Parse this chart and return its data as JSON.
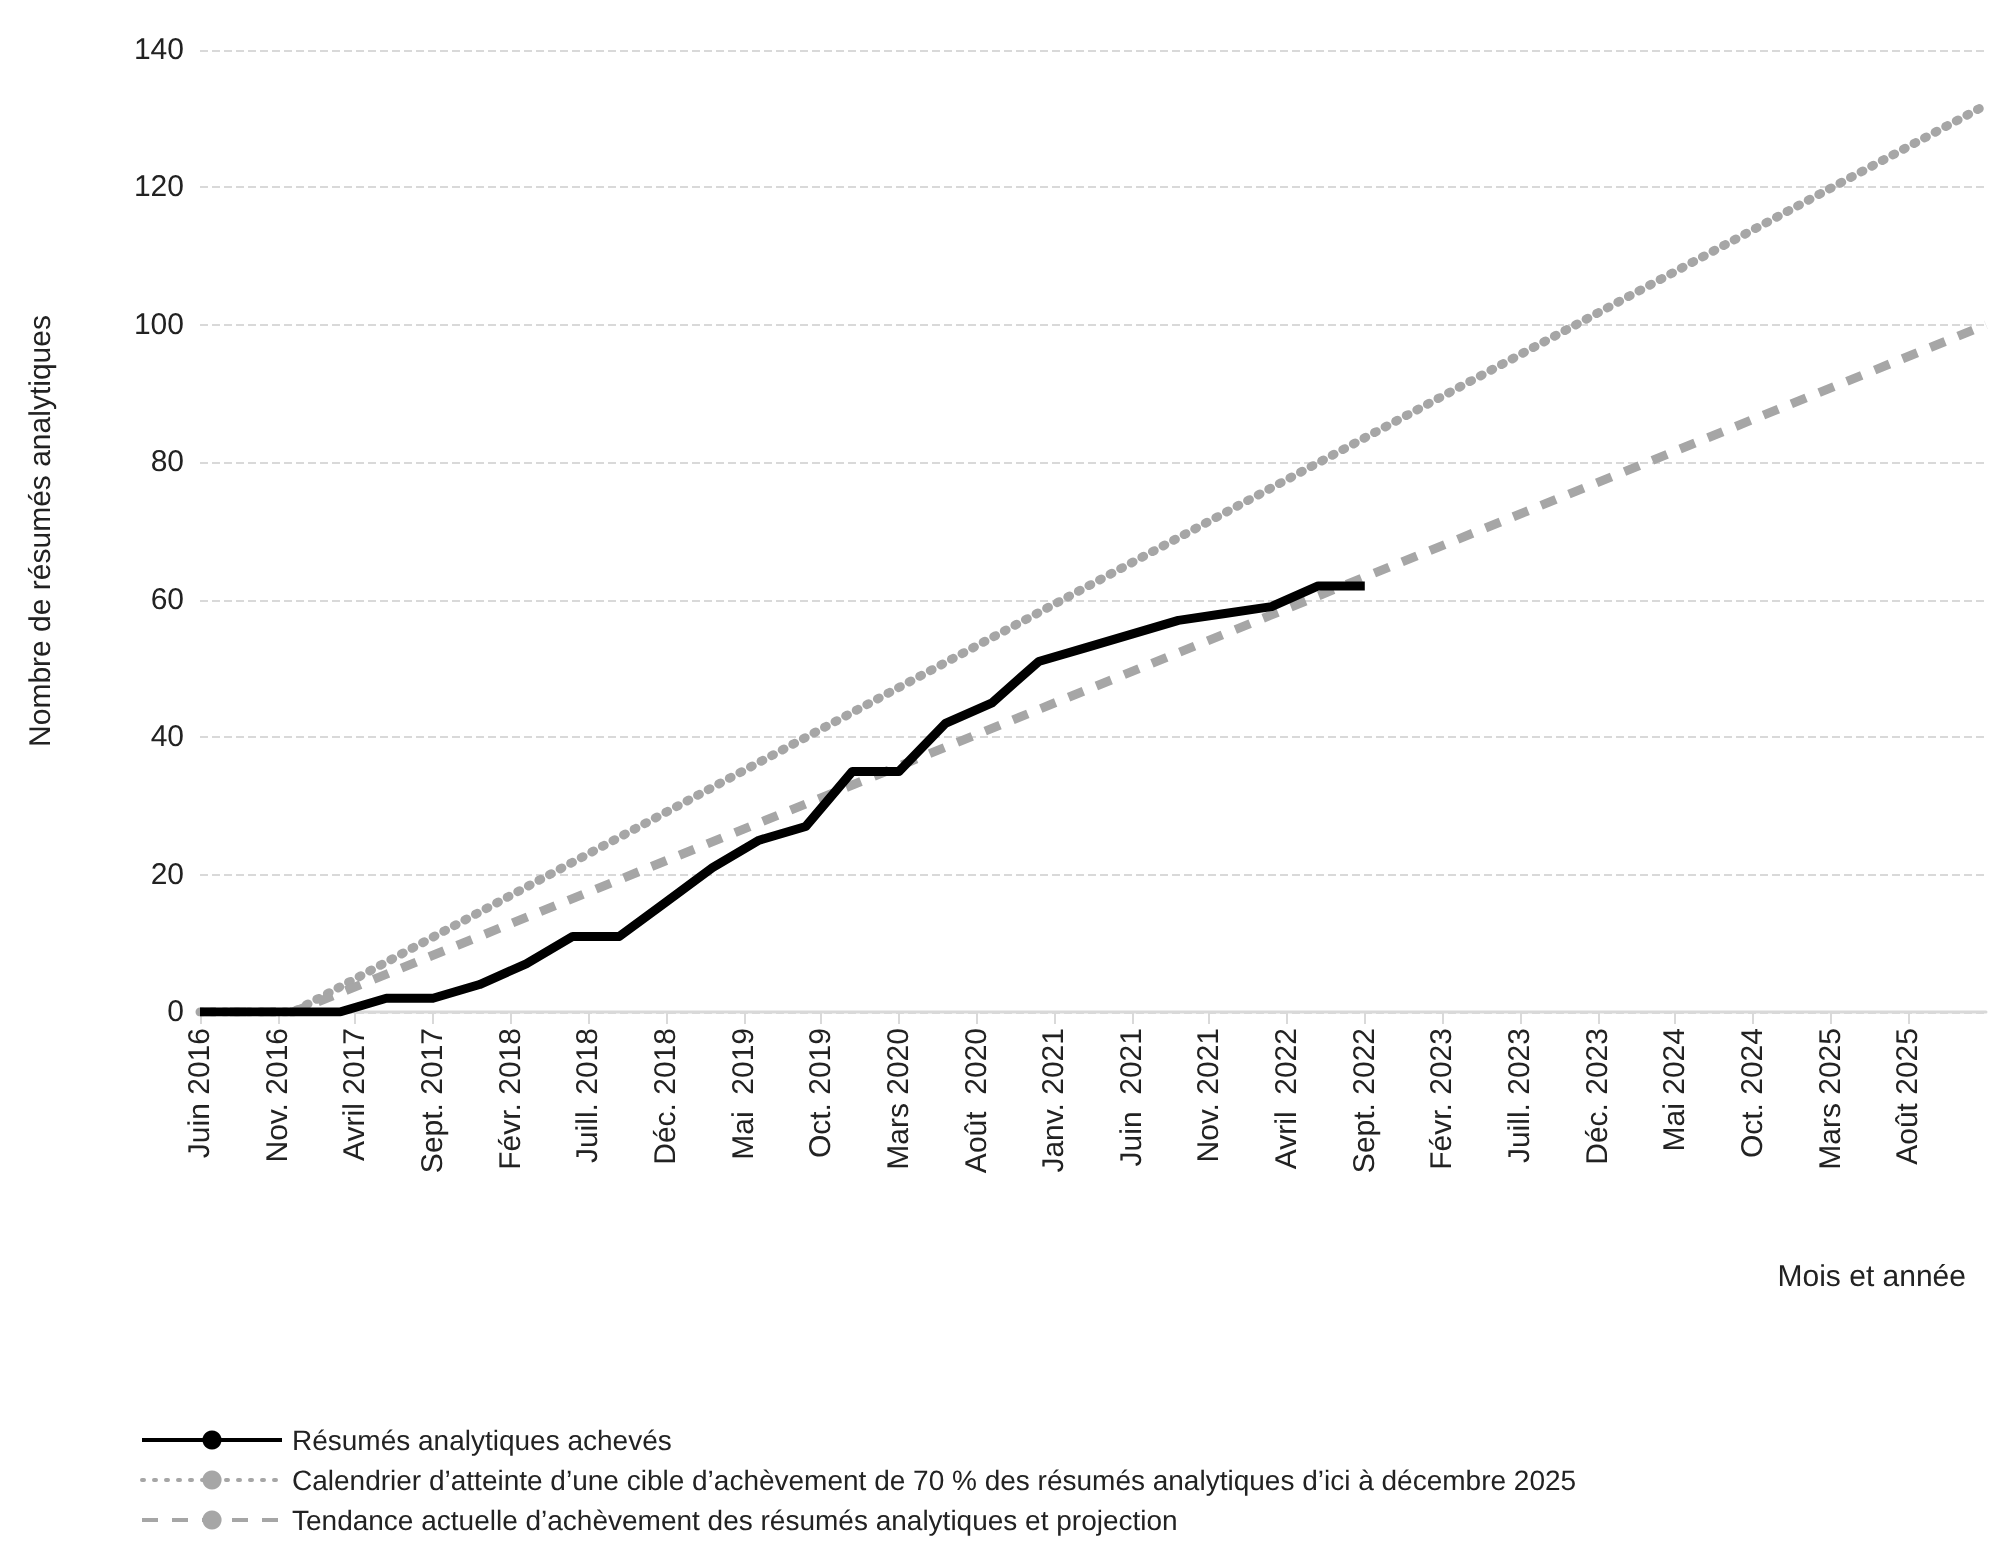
{
  "chart_data": {
    "type": "line",
    "xlabel": "Mois et année",
    "ylabel": "Nombre de résumés analytiques",
    "xlim": [
      "2016-06",
      "2026-01"
    ],
    "xticks": [
      {
        "value": "2016-06",
        "label": "Juin 2016"
      },
      {
        "value": "2016-11",
        "label": "Nov. 2016"
      },
      {
        "value": "2017-04",
        "label": "Avril 2017"
      },
      {
        "value": "2017-09",
        "label": "Sept. 2017"
      },
      {
        "value": "2018-02",
        "label": "Févr. 2018"
      },
      {
        "value": "2018-07",
        "label": "Juill. 2018"
      },
      {
        "value": "2018-12",
        "label": "Déc. 2018"
      },
      {
        "value": "2019-05",
        "label": "Mai  2019"
      },
      {
        "value": "2019-10",
        "label": "Oct. 2019"
      },
      {
        "value": "2020-03",
        "label": "Mars 2020"
      },
      {
        "value": "2020-08",
        "label": "Août  2020"
      },
      {
        "value": "2021-01",
        "label": "Janv. 2021"
      },
      {
        "value": "2021-06",
        "label": "Juin  2021"
      },
      {
        "value": "2021-11",
        "label": "Nov. 2021"
      },
      {
        "value": "2022-04",
        "label": "Avril  2022"
      },
      {
        "value": "2022-09",
        "label": "Sept. 2022"
      },
      {
        "value": "2023-02",
        "label": "Févr. 2023"
      },
      {
        "value": "2023-07",
        "label": "Juill. 2023"
      },
      {
        "value": "2023-12",
        "label": "Déc. 2023"
      },
      {
        "value": "2024-05",
        "label": "Mai 2024"
      },
      {
        "value": "2024-10",
        "label": "Oct. 2024"
      },
      {
        "value": "2025-03",
        "label": "Mars 2025"
      },
      {
        "value": "2025-08",
        "label": "Août 2025"
      }
    ],
    "ylim": [
      0,
      140
    ],
    "yticks": [
      0,
      20,
      40,
      60,
      80,
      100,
      120,
      140
    ],
    "grid": "y",
    "legend": "bottom left",
    "marker": "none",
    "series": [
      {
        "name": "Résumés analytiques achevés",
        "color": "#000000",
        "line_style": "solid",
        "x": [
          "2016-06",
          "2016-09",
          "2016-12",
          "2017-03",
          "2017-06",
          "2017-09",
          "2017-12",
          "2018-03",
          "2018-06",
          "2018-09",
          "2018-12",
          "2019-03",
          "2019-06",
          "2019-09",
          "2019-12",
          "2020-03",
          "2020-06",
          "2020-09",
          "2020-12",
          "2021-03",
          "2021-06",
          "2021-09",
          "2021-12",
          "2022-03",
          "2022-06",
          "2022-09"
        ],
        "values": [
          0,
          0,
          0,
          0,
          2,
          2,
          4,
          7,
          11,
          11,
          16,
          21,
          25,
          27,
          35,
          35,
          42,
          45,
          51,
          53,
          55,
          57,
          58,
          59,
          62,
          62
        ]
      },
      {
        "name": "Calendrier d’atteinte d’une cible d’achèvement de 70 % des résumés analytiques d’ici à décembre 2025",
        "color": "#a6a6a6",
        "line_style": "dotted",
        "x": [
          "2016-06",
          "2016-12",
          "2026-01"
        ],
        "values": [
          0,
          0,
          132
        ]
      },
      {
        "name": "Tendance actuelle d’achèvement des résumés analytiques et projection",
        "color": "#a6a6a6",
        "line_style": "dashed",
        "x": [
          "2016-06",
          "2016-12",
          "2026-01"
        ],
        "values": [
          0,
          0,
          100
        ]
      }
    ]
  }
}
